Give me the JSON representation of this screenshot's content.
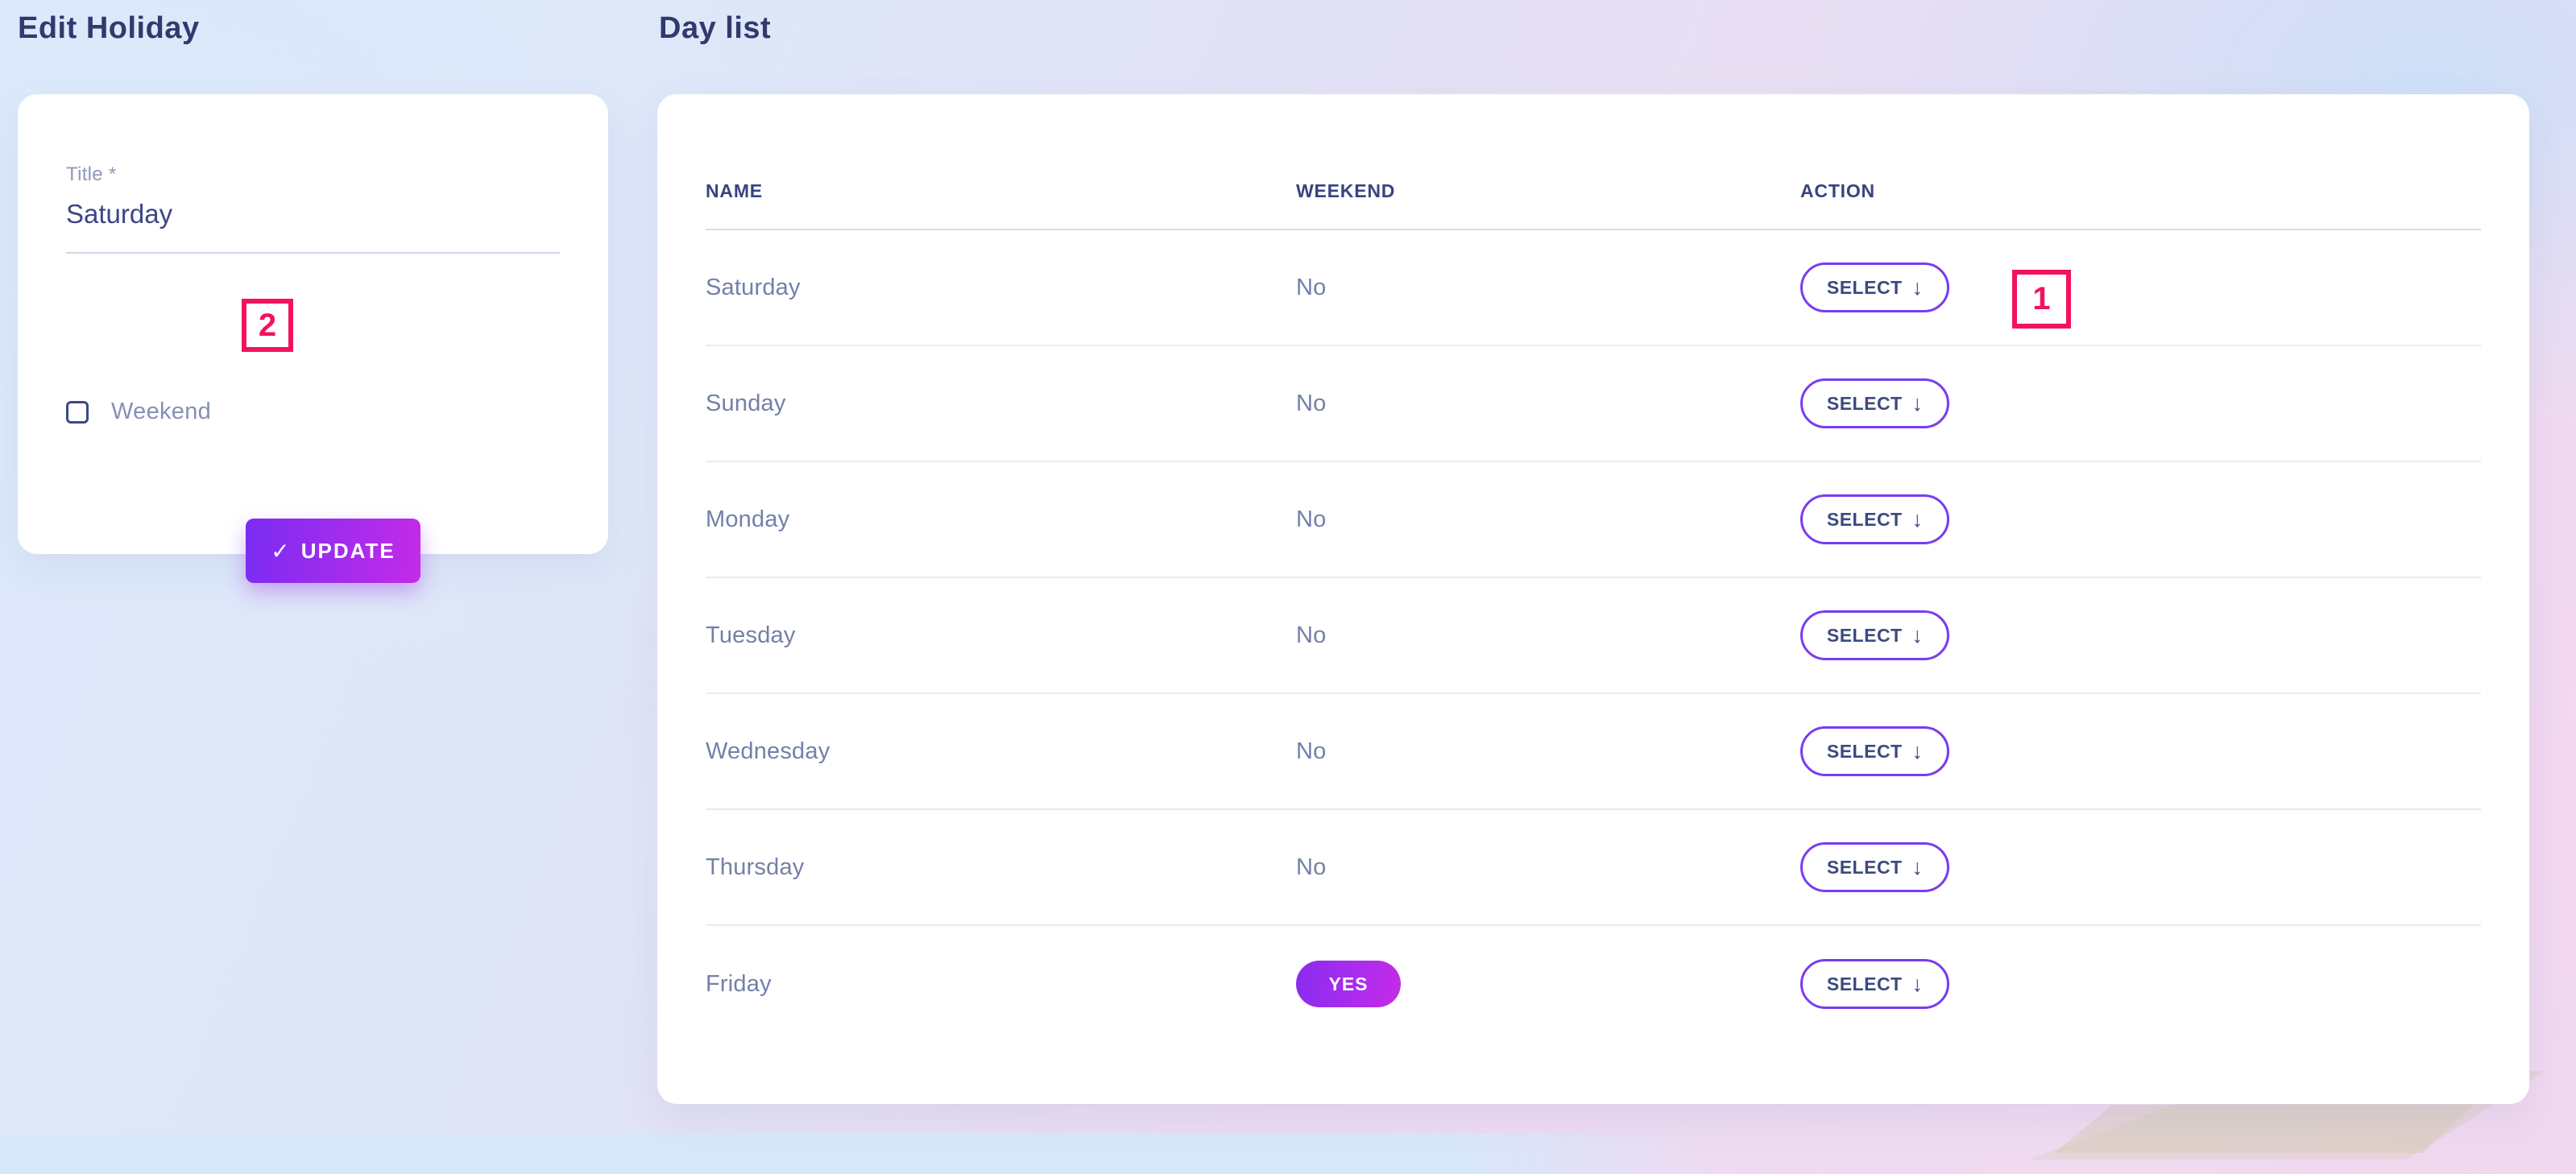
{
  "page": {
    "left_title": "Edit Holiday",
    "right_title": "Day list"
  },
  "form": {
    "title_label": "Title *",
    "title_value": "Saturday",
    "weekend_label": "Weekend",
    "weekend_checked": false,
    "update_label": "UPDATE"
  },
  "icons": {
    "check": "✓",
    "arrow_down": "↓"
  },
  "table": {
    "headers": [
      "NAME",
      "WEEKEND",
      "ACTION"
    ],
    "select_label": "SELECT",
    "rows": [
      {
        "name": "Saturday",
        "weekend": "No"
      },
      {
        "name": "Sunday",
        "weekend": "No"
      },
      {
        "name": "Monday",
        "weekend": "No"
      },
      {
        "name": "Tuesday",
        "weekend": "No"
      },
      {
        "name": "Wednesday",
        "weekend": "No"
      },
      {
        "name": "Thursday",
        "weekend": "No"
      },
      {
        "name": "Friday",
        "weekend": "YES"
      }
    ]
  },
  "annotations": {
    "one": "1",
    "two": "2"
  },
  "colors": {
    "accent_purple": "#7a3bf3",
    "gradient_start": "#7a2cf2",
    "gradient_end": "#c42be8",
    "annotation_red": "#f31260",
    "heading_blue": "#313a6d",
    "muted_blue": "#7380a9"
  }
}
